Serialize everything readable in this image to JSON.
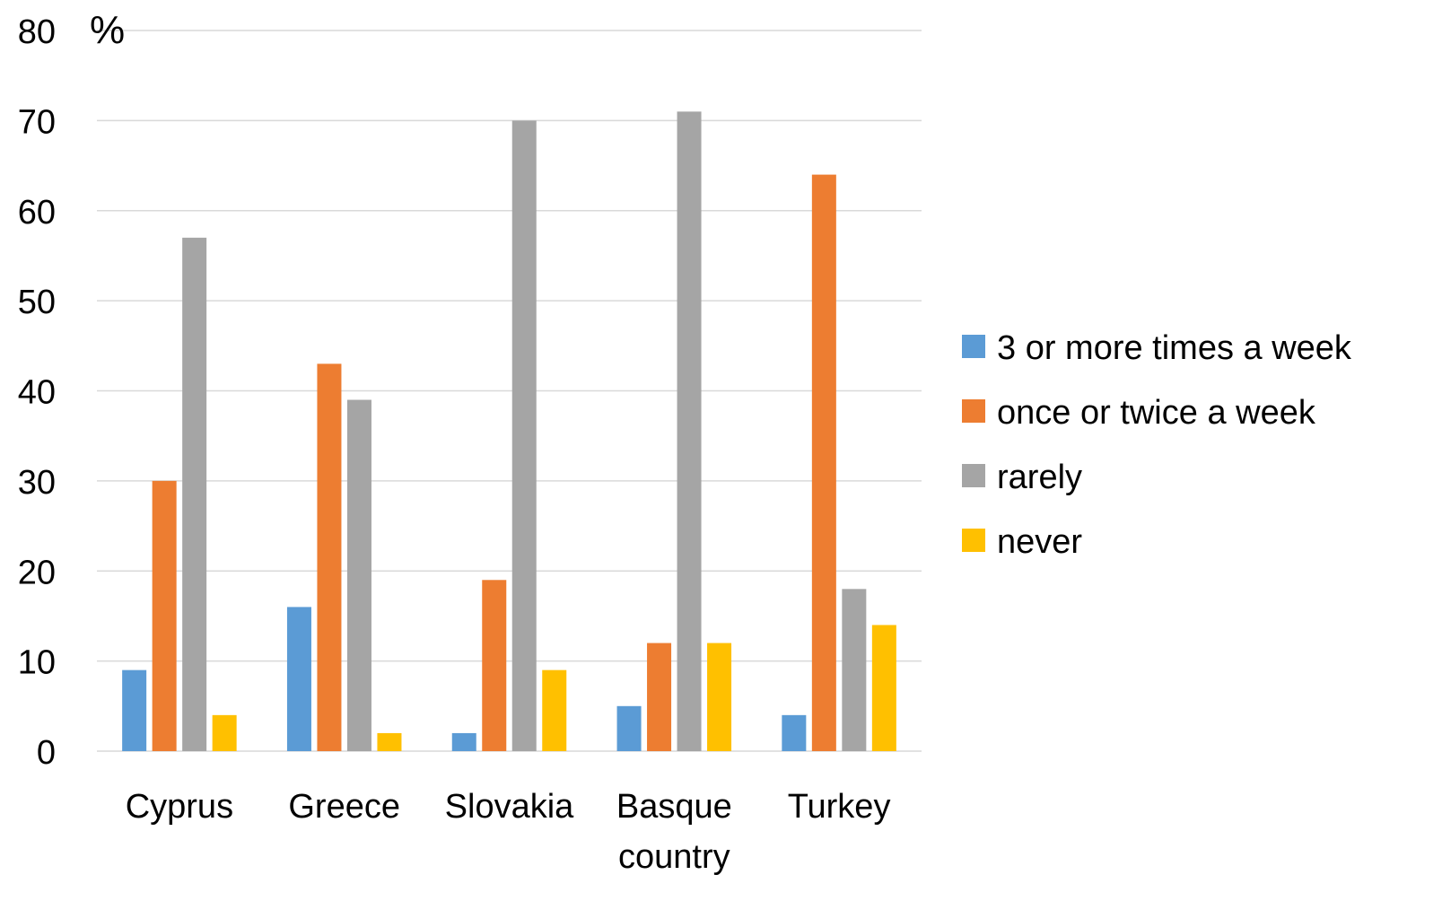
{
  "chart_data": {
    "type": "bar",
    "title": "",
    "xlabel": "",
    "ylabel": "%",
    "ylim": [
      0,
      80
    ],
    "yticks": [
      0,
      10,
      20,
      30,
      40,
      50,
      60,
      70,
      80
    ],
    "grid": true,
    "legend_position": "right",
    "categories": [
      "Cyprus",
      "Greece",
      "Slovakia",
      "Basque country",
      "Turkey"
    ],
    "category_label_lines": [
      [
        "Cyprus"
      ],
      [
        "Greece"
      ],
      [
        "Slovakia"
      ],
      [
        "Basque",
        "country"
      ],
      [
        "Turkey"
      ]
    ],
    "series": [
      {
        "name": "3 or more times a week",
        "color": "#5B9BD5",
        "values": [
          9,
          16,
          2,
          5,
          4
        ]
      },
      {
        "name": "once or twice a week",
        "color": "#ED7D31",
        "values": [
          30,
          43,
          19,
          12,
          64
        ]
      },
      {
        "name": "rarely",
        "color": "#A5A5A5",
        "values": [
          57,
          39,
          70,
          71,
          18
        ]
      },
      {
        "name": "never",
        "color": "#FFC000",
        "values": [
          4,
          2,
          9,
          12,
          14
        ]
      }
    ]
  }
}
